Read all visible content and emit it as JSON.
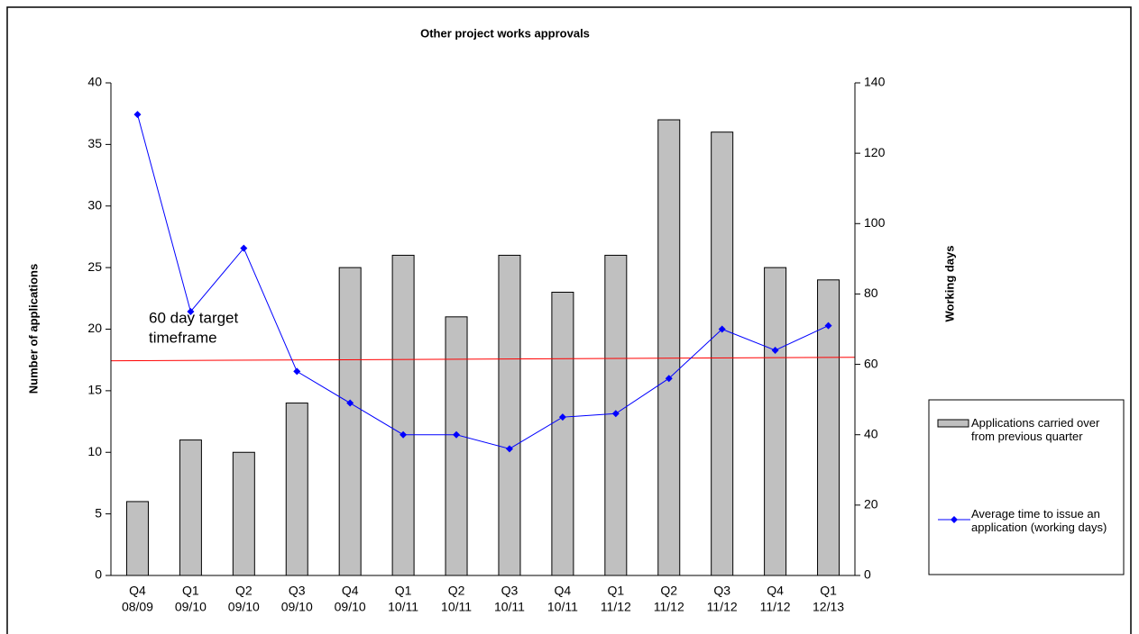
{
  "chart_data": {
    "type": "bar_line",
    "title": "Other project works approvals",
    "y_label": "Number of applications",
    "y2_label": "Working days",
    "categories": [
      [
        "Q4",
        "08/09"
      ],
      [
        "Q1",
        "09/10"
      ],
      [
        "Q2",
        "09/10"
      ],
      [
        "Q3",
        "09/10"
      ],
      [
        "Q4",
        "09/10"
      ],
      [
        "Q1",
        "10/11"
      ],
      [
        "Q2",
        "10/11"
      ],
      [
        "Q3",
        "10/11"
      ],
      [
        "Q4",
        "10/11"
      ],
      [
        "Q1",
        "11/12"
      ],
      [
        "Q2",
        "11/12"
      ],
      [
        "Q3",
        "11/12"
      ],
      [
        "Q4",
        "11/12"
      ],
      [
        "Q1",
        "12/13"
      ]
    ],
    "series": [
      {
        "name": "Applications carried over from previous quarter",
        "type": "bar",
        "color": "#c0c0c0",
        "values": [
          6,
          11,
          10,
          14,
          25,
          26,
          21,
          26,
          23,
          26,
          37,
          36,
          25,
          24
        ]
      },
      {
        "name": "Average time to issue an application (working days)",
        "type": "line",
        "axis": "y2",
        "color": "#0000ff",
        "values": [
          131,
          75,
          93,
          58,
          49,
          40,
          40,
          36,
          45,
          46,
          56,
          70,
          64,
          71
        ]
      }
    ],
    "target": {
      "label_lines": [
        "60 day target",
        "timeframe"
      ],
      "axis": "y2",
      "color": "#ff0000",
      "values": [
        61,
        62
      ]
    },
    "ylim": [
      0,
      40
    ],
    "yticks": [
      0,
      5,
      10,
      15,
      20,
      25,
      30,
      35,
      40
    ],
    "y2lim": [
      0,
      140
    ],
    "y2ticks": [
      0,
      20,
      40,
      60,
      80,
      100,
      120,
      140
    ]
  }
}
